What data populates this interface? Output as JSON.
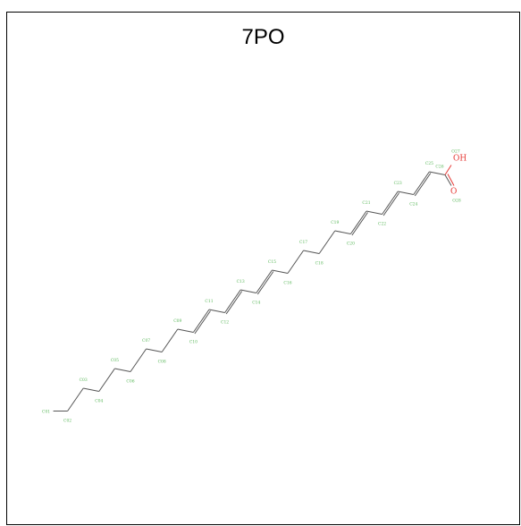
{
  "title": "7PO",
  "colors": {
    "bond": "#555555",
    "carbon_label": "#5cb85c",
    "oxygen": "#e53935",
    "frame": "#000000",
    "background": "#ffffff"
  },
  "atoms": [
    {
      "label": "C01",
      "element": "C"
    },
    {
      "label": "C02",
      "element": "C"
    },
    {
      "label": "C03",
      "element": "C"
    },
    {
      "label": "C04",
      "element": "C"
    },
    {
      "label": "C05",
      "element": "C"
    },
    {
      "label": "C06",
      "element": "C"
    },
    {
      "label": "C07",
      "element": "C"
    },
    {
      "label": "C08",
      "element": "C"
    },
    {
      "label": "C09",
      "element": "C"
    },
    {
      "label": "C10",
      "element": "C"
    },
    {
      "label": "C11",
      "element": "C"
    },
    {
      "label": "C12",
      "element": "C"
    },
    {
      "label": "C13",
      "element": "C"
    },
    {
      "label": "C14",
      "element": "C"
    },
    {
      "label": "C15",
      "element": "C"
    },
    {
      "label": "C16",
      "element": "C"
    },
    {
      "label": "C17",
      "element": "C"
    },
    {
      "label": "C18",
      "element": "C"
    },
    {
      "label": "C19",
      "element": "C"
    },
    {
      "label": "C20",
      "element": "C"
    },
    {
      "label": "C21",
      "element": "C"
    },
    {
      "label": "C22",
      "element": "C"
    },
    {
      "label": "C23",
      "element": "C"
    },
    {
      "label": "C24",
      "element": "C"
    },
    {
      "label": "C25",
      "element": "C"
    },
    {
      "label": "C26",
      "element": "C"
    },
    {
      "label": "O27",
      "element": "O"
    },
    {
      "label": "O28",
      "element": "O"
    }
  ],
  "oxygen_symbols": {
    "hydroxyl": "OH",
    "carbonyl": "O"
  }
}
